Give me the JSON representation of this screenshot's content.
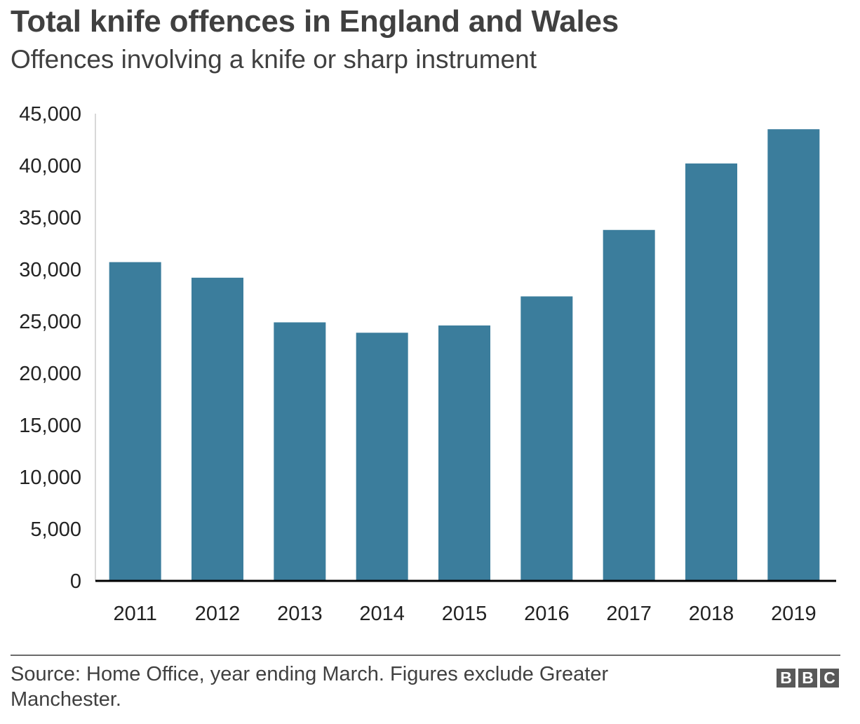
{
  "chart_data": {
    "type": "bar",
    "title": "Total knife offences in England and Wales",
    "subtitle": "Offences involving a knife or sharp instrument",
    "categories": [
      "2011",
      "2012",
      "2013",
      "2014",
      "2015",
      "2016",
      "2017",
      "2018",
      "2019"
    ],
    "values": [
      30700,
      29200,
      24900,
      23900,
      24600,
      27400,
      33800,
      40200,
      43500
    ],
    "yticks": [
      "0",
      "5,000",
      "10,000",
      "15,000",
      "20,000",
      "25,000",
      "30,000",
      "35,000",
      "40,000",
      "45,000"
    ],
    "ylim": [
      0,
      45000
    ],
    "xlabel": "",
    "ylabel": "",
    "grid": false,
    "bar_color": "#3b7d9c"
  },
  "footer": {
    "source": "Source: Home Office, year ending March. Figures exclude Greater Manchester.",
    "logo_letters": [
      "B",
      "B",
      "C"
    ]
  }
}
